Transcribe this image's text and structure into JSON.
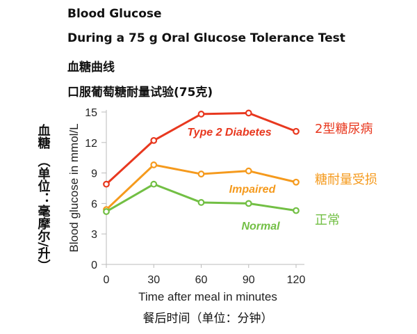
{
  "chart_data": {
    "type": "line",
    "title": "Blood Glucose",
    "subtitle": "During a 75 g Oral Glucose Tolerance Test",
    "title_cn": "血糖曲线",
    "subtitle_cn": "口服葡萄糖耐量试验(75克)",
    "xlabel": "Time after meal in minutes",
    "xlabel_cn": "餐后时间（单位：分钟）",
    "ylabel": "Blood glucose in mmol/L",
    "ylabel_cn_top": "血糖",
    "ylabel_cn_bottom": "（单位：毫摩尔/升）",
    "x": [
      0,
      30,
      60,
      90,
      120
    ],
    "x_ticks": [
      "0",
      "30",
      "60",
      "90",
      "120"
    ],
    "y_ticks": [
      "0",
      "3",
      "6",
      "9",
      "12",
      "15"
    ],
    "xlim": [
      0,
      120
    ],
    "ylim": [
      0,
      15
    ],
    "grid": false,
    "series": [
      {
        "name": "Type 2 Diabetes",
        "name_cn": "2型糖尿病",
        "color": "#e8381f",
        "values": [
          7.9,
          12.2,
          14.8,
          14.9,
          13.1
        ]
      },
      {
        "name": "Impaired",
        "name_cn": "糖耐量受损",
        "color": "#f59a1d",
        "values": [
          5.4,
          9.8,
          8.9,
          9.2,
          8.1
        ]
      },
      {
        "name": "Normal",
        "name_cn": "正常",
        "color": "#72bf44",
        "values": [
          5.2,
          7.9,
          6.1,
          6.0,
          5.3
        ]
      }
    ]
  }
}
